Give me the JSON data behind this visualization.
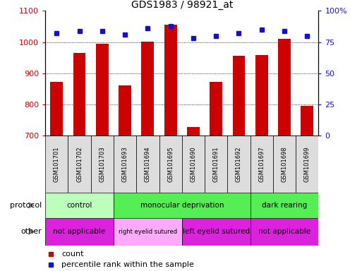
{
  "title": "GDS1983 / 98921_at",
  "samples": [
    "GSM101701",
    "GSM101702",
    "GSM101703",
    "GSM101693",
    "GSM101694",
    "GSM101695",
    "GSM101690",
    "GSM101691",
    "GSM101692",
    "GSM101697",
    "GSM101698",
    "GSM101699"
  ],
  "counts": [
    872,
    966,
    995,
    860,
    1002,
    1055,
    728,
    872,
    957,
    958,
    1010,
    795
  ],
  "percentiles": [
    82,
    84,
    84,
    81,
    86,
    88,
    78,
    80,
    82,
    85,
    84,
    80
  ],
  "ylim_left": [
    700,
    1100
  ],
  "ylim_right": [
    0,
    100
  ],
  "yticks_left": [
    700,
    800,
    900,
    1000,
    1100
  ],
  "yticks_right": [
    0,
    25,
    50,
    75,
    100
  ],
  "yticklabels_right": [
    "0",
    "25",
    "50",
    "75",
    "100%"
  ],
  "bar_color": "#cc0000",
  "dot_color": "#1111cc",
  "protocol_groups": [
    {
      "label": "control",
      "start": 0,
      "end": 3,
      "color": "#bbffbb"
    },
    {
      "label": "monocular deprivation",
      "start": 3,
      "end": 9,
      "color": "#55ee55"
    },
    {
      "label": "dark rearing",
      "start": 9,
      "end": 12,
      "color": "#55ee55"
    }
  ],
  "other_groups": [
    {
      "label": "not applicable",
      "start": 0,
      "end": 3,
      "color": "#dd22dd"
    },
    {
      "label": "right eyelid sutured",
      "start": 3,
      "end": 6,
      "color": "#ffaaff"
    },
    {
      "label": "left eyelid sutured",
      "start": 6,
      "end": 9,
      "color": "#dd22dd"
    },
    {
      "label": "not applicable",
      "start": 9,
      "end": 12,
      "color": "#dd22dd"
    }
  ],
  "protocol_label": "protocol",
  "other_label": "other",
  "legend_bar_label": "count",
  "legend_dot_label": "percentile rank within the sample",
  "bar_color_legend": "#cc0000",
  "dot_color_legend": "#1111cc",
  "tick_label_color_left": "#cc0000",
  "tick_label_color_right": "#1111cc",
  "sample_box_color": "#dddddd",
  "grid_dotted_color": "#000000",
  "n_samples": 12
}
